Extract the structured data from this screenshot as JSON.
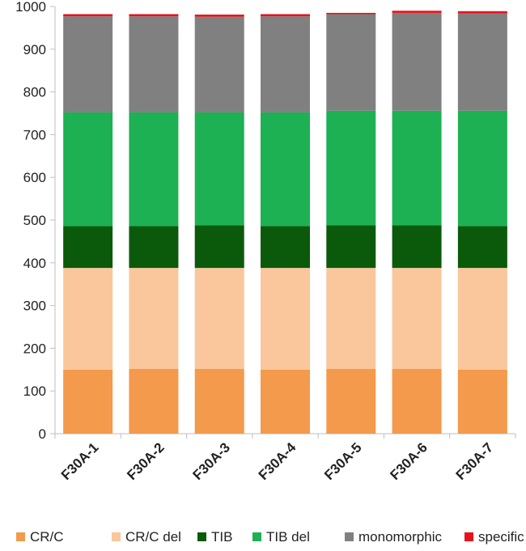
{
  "chart_data": {
    "type": "bar",
    "stacked": true,
    "title": "",
    "xlabel": "",
    "ylabel": "",
    "ylim": [
      0,
      1000
    ],
    "yticks": [
      0,
      100,
      200,
      300,
      400,
      500,
      600,
      700,
      800,
      900,
      1000
    ],
    "grid": false,
    "legend_position": "bottom",
    "categories": [
      "F30A-1",
      "F30A-2",
      "F30A-3",
      "F30A-4",
      "F30A-5",
      "F30A-6",
      "F30A-7"
    ],
    "series": [
      {
        "name": "CR/C",
        "color": "#F39A4C",
        "values": [
          150,
          152,
          152,
          150,
          152,
          152,
          150
        ]
      },
      {
        "name": "CR/C del",
        "color": "#F9C79B",
        "values": [
          238,
          236,
          236,
          238,
          236,
          236,
          238
        ]
      },
      {
        "name": "TIB",
        "color": "#0B5A0B",
        "values": [
          98,
          98,
          100,
          98,
          100,
          100,
          98
        ]
      },
      {
        "name": "TIB del",
        "color": "#1DB154",
        "values": [
          266,
          266,
          264,
          266,
          268,
          268,
          270
        ]
      },
      {
        "name": "monomorphic",
        "color": "#808080",
        "values": [
          225,
          225,
          224,
          225,
          226,
          229,
          228
        ]
      },
      {
        "name": "specific",
        "color": "#E8121B",
        "values": [
          5,
          5,
          5,
          5,
          3,
          5,
          5
        ]
      }
    ]
  }
}
